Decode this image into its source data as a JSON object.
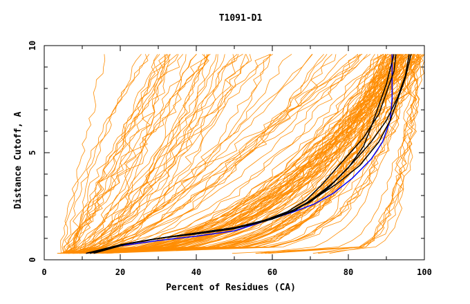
{
  "chart_data": {
    "type": "line",
    "title": "T1091-D1",
    "xlabel": "Percent of Residues (CA)",
    "ylabel": "Distance Cutoff, A",
    "xlim": [
      0,
      100
    ],
    "ylim": [
      0,
      10
    ],
    "xticks": [
      0,
      20,
      40,
      60,
      80,
      100
    ],
    "yticks": [
      0,
      5,
      10
    ],
    "grid": false,
    "legend": "none",
    "colors": {
      "background_models": "#ff8c00",
      "highlight_black": "#000000",
      "highlight_blue": "#0000ff"
    },
    "series": [
      {
        "color": "#0000ff",
        "x": [
          11,
          20,
          30,
          40,
          50,
          58,
          65,
          71,
          76,
          81,
          86,
          89,
          91,
          91.5,
          91.5,
          91.5
        ],
        "y": [
          0.3,
          0.65,
          0.9,
          1.1,
          1.35,
          1.8,
          2.2,
          2.6,
          3.1,
          3.8,
          4.7,
          5.5,
          6.5,
          7.5,
          8.5,
          9.6
        ]
      },
      {
        "color": "#000000",
        "x": [
          12,
          20,
          30,
          40,
          50,
          58,
          64,
          69,
          73,
          78,
          84,
          88,
          90,
          92,
          92.5
        ],
        "y": [
          0.3,
          0.7,
          1.0,
          1.25,
          1.5,
          1.85,
          2.25,
          2.8,
          3.5,
          4.5,
          5.7,
          6.8,
          7.8,
          8.8,
          9.6
        ]
      },
      {
        "color": "#000000",
        "x": [
          13,
          22,
          32,
          42,
          52,
          60,
          66,
          71,
          76,
          81,
          86,
          90,
          93,
          95,
          96
        ],
        "y": [
          0.3,
          0.75,
          1.05,
          1.3,
          1.55,
          1.9,
          2.3,
          2.9,
          3.6,
          4.5,
          5.5,
          6.5,
          7.6,
          8.6,
          9.6
        ]
      },
      {
        "color": "#000000",
        "x": [
          11,
          20,
          30,
          40,
          50,
          58,
          64,
          70,
          75,
          80,
          84,
          86,
          88,
          90,
          92
        ],
        "y": [
          0.3,
          0.7,
          1.0,
          1.2,
          1.45,
          1.8,
          2.2,
          2.7,
          3.4,
          4.3,
          5.3,
          6.2,
          7.2,
          8.2,
          9.6
        ]
      },
      {
        "color": "#000000",
        "x": [
          12,
          21,
          31,
          41,
          51,
          59,
          65,
          71,
          77,
          83,
          88,
          91,
          93,
          95,
          96.5
        ],
        "y": [
          0.3,
          0.72,
          1.02,
          1.27,
          1.52,
          1.87,
          2.27,
          2.85,
          3.55,
          4.4,
          5.5,
          6.5,
          7.5,
          8.5,
          9.6
        ]
      }
    ],
    "background_model_count": 150
  }
}
